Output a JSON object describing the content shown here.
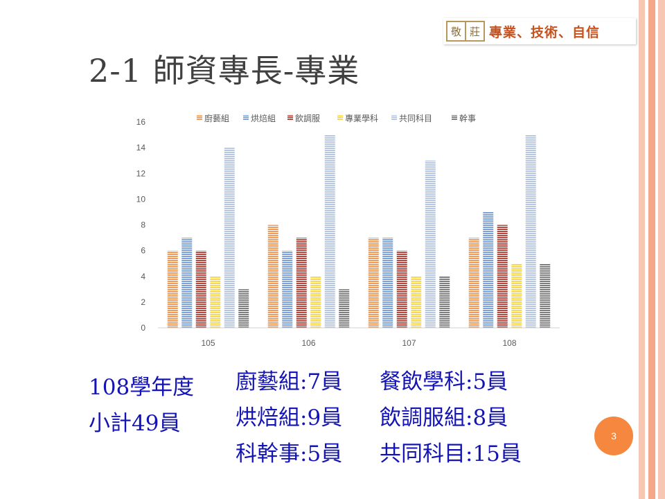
{
  "header": {
    "logo_chars": [
      "敬",
      "莊"
    ],
    "slogan": "專業、技術、自信"
  },
  "title": "2-1 師資專長-專業",
  "colors": {
    "stripe_pink": "#f7c7b4",
    "stripe_peach": "#f4a888",
    "accent_orange": "#f5883e",
    "info_text": "#1414b4"
  },
  "chart_data": {
    "type": "bar",
    "categories": [
      "105",
      "106",
      "107",
      "108"
    ],
    "series": [
      {
        "name": "廚藝組",
        "color": "#f09a5c",
        "values": [
          6,
          8,
          7,
          7
        ]
      },
      {
        "name": "烘焙組",
        "color": "#7fa1d9",
        "values": [
          7,
          6,
          7,
          9
        ]
      },
      {
        "name": "飲調服",
        "color": "#b8473d",
        "values": [
          6,
          7,
          6,
          8
        ]
      },
      {
        "name": "專業學科",
        "color": "#f7d75a",
        "values": [
          4,
          4,
          4,
          5
        ]
      },
      {
        "name": "共同科目",
        "color": "#b7c7e2",
        "values": [
          14,
          15,
          13,
          15
        ]
      },
      {
        "name": "幹事",
        "color": "#7d7d7d",
        "values": [
          3,
          3,
          4,
          5
        ]
      }
    ],
    "yticks": [
      "0",
      "2",
      "4",
      "6",
      "8",
      "10",
      "12",
      "14",
      "16"
    ],
    "ylim": [
      0,
      16
    ],
    "legend_position": "top",
    "gridlines": false
  },
  "summary": {
    "year": "108學年度",
    "total": "小計49員",
    "lines": [
      [
        "廚藝組:7員",
        "餐飲學科:5員"
      ],
      [
        "烘焙組:9員",
        "飲調服組:8員"
      ],
      [
        "科幹事:5員",
        "共同科目:15員"
      ]
    ]
  },
  "page_number": "3"
}
